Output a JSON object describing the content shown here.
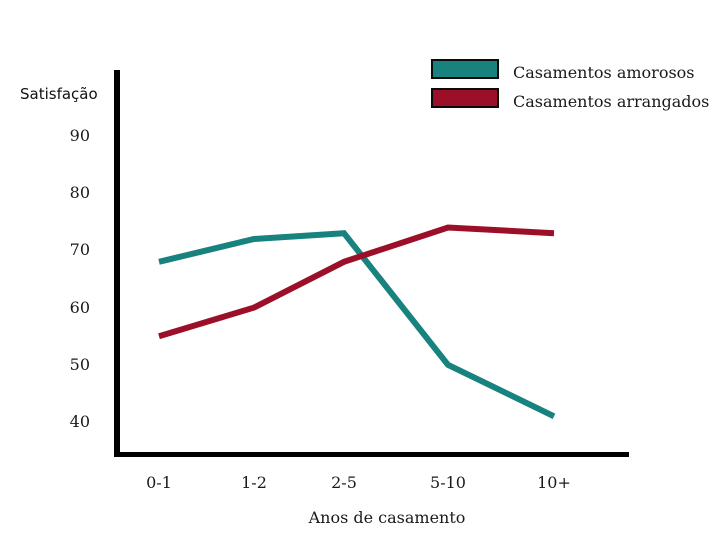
{
  "chart_data": {
    "type": "line",
    "title": "",
    "ylabel": "Satisfação",
    "xlabel": "Anos de casamento",
    "categories": [
      "0-1",
      "1-2",
      "2-5",
      "5-10",
      "10+"
    ],
    "yticks": [
      90,
      80,
      70,
      60,
      50,
      40
    ],
    "ylim": [
      35,
      95
    ],
    "grid": false,
    "legend_position": "top-right",
    "axis_color": "#000000",
    "series": [
      {
        "name": "Casamentos amorosos",
        "color": "#17827E",
        "values": [
          68,
          72,
          73,
          50,
          41
        ]
      },
      {
        "name": "Casamentos arrangados",
        "color": "#9C0F28",
        "values": [
          55,
          60,
          68,
          74,
          73
        ]
      }
    ]
  }
}
